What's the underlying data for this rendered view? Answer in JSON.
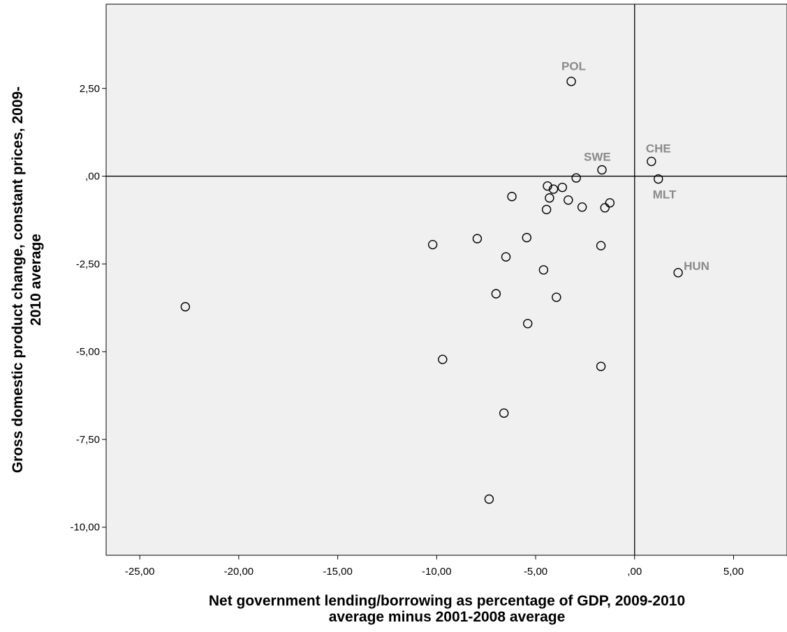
{
  "chart_data": {
    "type": "scatter",
    "title": "",
    "xlabel_lines": [
      "Net government lending/borrowing as percentage of GDP, 2009-2010",
      "average minus 2001-2008 average"
    ],
    "ylabel_lines": [
      "Gross domestic product change, constant prices, 2009-",
      "2010 average"
    ],
    "xlim": [
      -26.7,
      7.7
    ],
    "ylim": [
      -10.8,
      4.9
    ],
    "xticks": [
      -25,
      -20,
      -15,
      -10,
      -5,
      0,
      5
    ],
    "xtick_labels": [
      "-25,00",
      "-20,00",
      "-15,00",
      "-10,00",
      "-5,00",
      ",00",
      "5,00"
    ],
    "yticks": [
      2.5,
      0,
      -2.5,
      -5,
      -7.5,
      -10
    ],
    "ytick_labels": [
      "2,50",
      ",00",
      "-2,50",
      "-5,00",
      "-7,50",
      "-10,00"
    ],
    "reference_lines": {
      "x": 0,
      "y": 0
    },
    "grid": false,
    "plot_background": "#f0f0f0",
    "marker": "open-circle",
    "points": [
      {
        "x": -3.2,
        "y": 2.7,
        "label": "POL"
      },
      {
        "x": -1.65,
        "y": 0.18,
        "label": "SWE"
      },
      {
        "x": 0.85,
        "y": 0.42,
        "label": "CHE"
      },
      {
        "x": 1.2,
        "y": -0.08,
        "label": "MLT"
      },
      {
        "x": 2.2,
        "y": -2.75,
        "label": "HUN"
      },
      {
        "x": -2.95,
        "y": -0.05,
        "label": ""
      },
      {
        "x": -4.4,
        "y": -0.28,
        "label": ""
      },
      {
        "x": -4.1,
        "y": -0.37,
        "label": ""
      },
      {
        "x": -3.65,
        "y": -0.32,
        "label": ""
      },
      {
        "x": -4.3,
        "y": -0.62,
        "label": ""
      },
      {
        "x": -6.2,
        "y": -0.58,
        "label": ""
      },
      {
        "x": -3.35,
        "y": -0.68,
        "label": ""
      },
      {
        "x": -2.65,
        "y": -0.88,
        "label": ""
      },
      {
        "x": -4.45,
        "y": -0.95,
        "label": ""
      },
      {
        "x": -1.5,
        "y": -0.9,
        "label": ""
      },
      {
        "x": -1.25,
        "y": -0.76,
        "label": ""
      },
      {
        "x": -10.2,
        "y": -1.95,
        "label": ""
      },
      {
        "x": -7.95,
        "y": -1.78,
        "label": ""
      },
      {
        "x": -5.45,
        "y": -1.75,
        "label": ""
      },
      {
        "x": -1.7,
        "y": -1.98,
        "label": ""
      },
      {
        "x": -6.5,
        "y": -2.3,
        "label": ""
      },
      {
        "x": -4.6,
        "y": -2.67,
        "label": ""
      },
      {
        "x": -22.7,
        "y": -3.72,
        "label": ""
      },
      {
        "x": -7.0,
        "y": -3.35,
        "label": ""
      },
      {
        "x": -3.95,
        "y": -3.45,
        "label": ""
      },
      {
        "x": -5.4,
        "y": -4.2,
        "label": ""
      },
      {
        "x": -9.7,
        "y": -5.22,
        "label": ""
      },
      {
        "x": -1.7,
        "y": -5.42,
        "label": ""
      },
      {
        "x": -6.6,
        "y": -6.75,
        "label": ""
      },
      {
        "x": -7.35,
        "y": -9.2,
        "label": ""
      }
    ]
  }
}
